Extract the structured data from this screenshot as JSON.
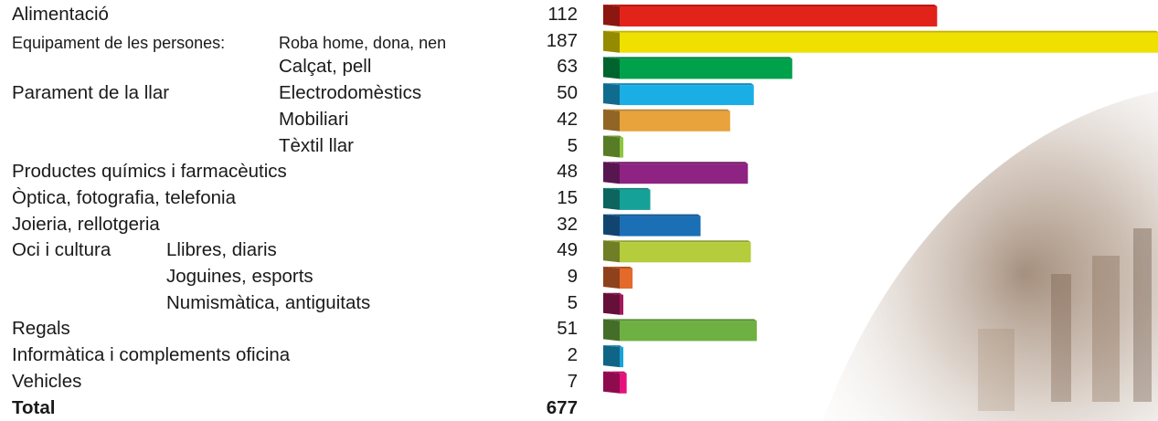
{
  "chart_data": {
    "type": "bar",
    "orientation": "horizontal",
    "rows": [
      {
        "label": "Alimentació",
        "sublabel": "",
        "value": 112,
        "color": "#e2231a"
      },
      {
        "label": "Equipament de les persones:",
        "sublabel": "Roba home, dona, nen",
        "value": 187,
        "color": "#f0e000"
      },
      {
        "label": "",
        "sublabel": "Calçat, pell",
        "value": 63,
        "color": "#00a14b"
      },
      {
        "label": "Parament de la llar",
        "sublabel": "Electrodomèstics",
        "value": 50,
        "color": "#1aaee5"
      },
      {
        "label": "",
        "sublabel": "Mobiliari",
        "value": 42,
        "color": "#e8a33c"
      },
      {
        "label": "",
        "sublabel": "Tèxtil llar",
        "value": 5,
        "color": "#8dc63f"
      },
      {
        "label": "Productes químics i farmacèutics",
        "sublabel": "",
        "value": 48,
        "color": "#8e2383"
      },
      {
        "label": "Òptica, fotografia, telefonia",
        "sublabel": "",
        "value": 15,
        "color": "#16a198"
      },
      {
        "label": "Joieria, rellotgeria",
        "sublabel": "",
        "value": 32,
        "color": "#1b6fb5"
      },
      {
        "label": "Oci i cultura",
        "sublabel": "Llibres, diaris",
        "value": 49,
        "color": "#b5cc3c"
      },
      {
        "label": "",
        "sublabel": "Joguines, esports",
        "value": 9,
        "color": "#e36a2b"
      },
      {
        "label": "",
        "sublabel": "Numismàtica, antiguitats",
        "value": 5,
        "color": "#a3195b"
      },
      {
        "label": "Regals",
        "sublabel": "",
        "value": 51,
        "color": "#6fb043"
      },
      {
        "label": "Informàtica i complements oficina",
        "sublabel": "",
        "value": 2,
        "color": "#1aa3d8"
      },
      {
        "label": "Vehicles",
        "sublabel": "",
        "value": 7,
        "color": "#e5127d"
      }
    ],
    "total_label": "Total",
    "total_value": 677,
    "xlim": [
      0,
      187
    ]
  }
}
